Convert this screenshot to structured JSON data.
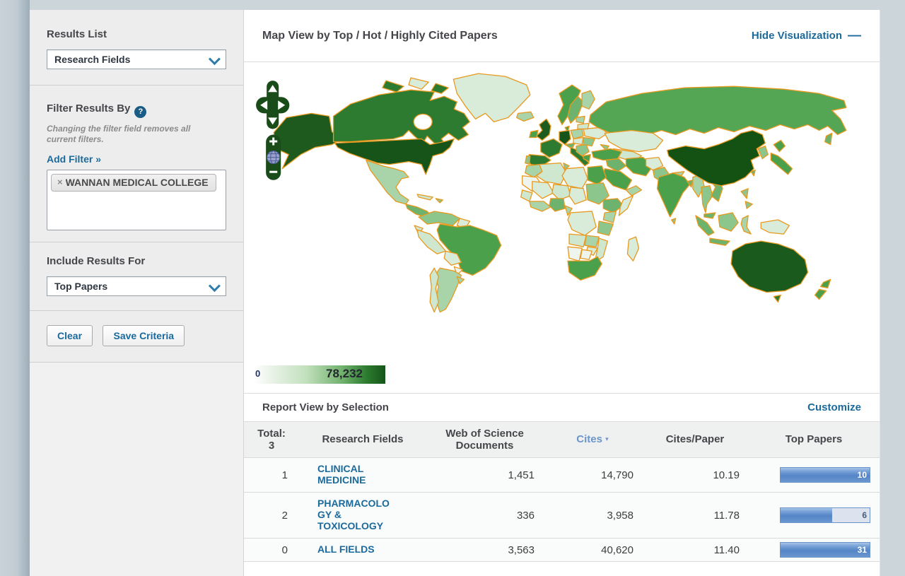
{
  "sidebar": {
    "results_list": {
      "heading": "Results List",
      "value": "Research Fields"
    },
    "filter": {
      "heading": "Filter Results By",
      "help_icon": "?",
      "note": "Changing the filter field removes all current filters.",
      "add_filter": "Add Filter »",
      "chips": [
        {
          "remove": "×",
          "label": "WANNAN MEDICAL COLLEGE"
        }
      ]
    },
    "include": {
      "heading": "Include Results For",
      "value": "Top Papers"
    },
    "buttons": {
      "clear": "Clear",
      "save": "Save Criteria"
    }
  },
  "map": {
    "title": "Map View by Top / Hot / Highly Cited Papers",
    "hide_label": "Hide Visualization",
    "hide_icon": "—",
    "legend": {
      "min": "0",
      "max": "78,232"
    },
    "palette": {
      "border": "#e8991f",
      "low": "#ffffff",
      "high": "#155415"
    },
    "controls": {
      "zoom_plus": "+",
      "zoom_minus": "−"
    }
  },
  "report": {
    "title": "Report View by Selection",
    "customize": "Customize",
    "header": {
      "total_label": "Total:",
      "total_value": "3",
      "field": "Research Fields",
      "docs": "Web of Science Documents",
      "cites": "Cites",
      "sort_icon": "▾",
      "cpp": "Cites/Paper",
      "top": "Top Papers"
    },
    "rows": [
      {
        "rank": "1",
        "field": "CLINICAL MEDICINE",
        "docs": "1,451",
        "cites": "14,790",
        "cpp": "10.19",
        "top": "10",
        "bar_pct": 100
      },
      {
        "rank": "2",
        "field": "PHARMACOLOGY & TOXICOLOGY",
        "docs": "336",
        "cites": "3,958",
        "cpp": "11.78",
        "top": "6",
        "bar_pct": 58
      },
      {
        "rank": "0",
        "field": "ALL FIELDS",
        "docs": "3,563",
        "cites": "40,620",
        "cpp": "11.40",
        "top": "31",
        "bar_pct": 100
      }
    ]
  }
}
